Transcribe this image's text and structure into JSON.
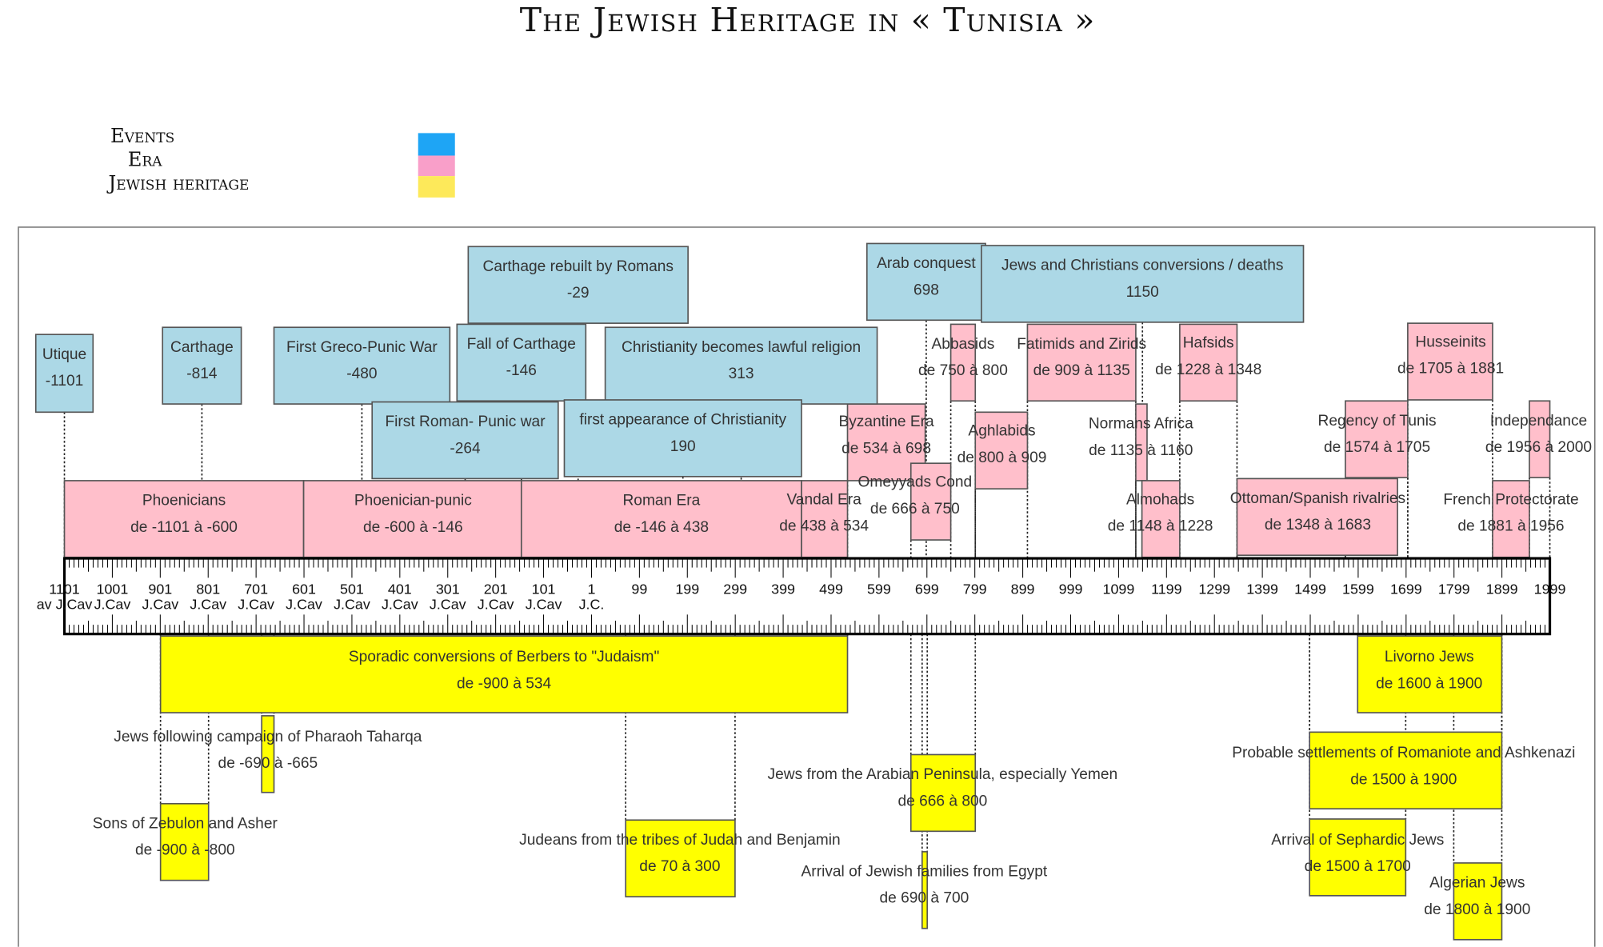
{
  "title": "The Jewish Heritage in « Tunisia »",
  "legend": [
    "Events",
    "Era",
    "Jewish heritage"
  ],
  "axis": {
    "years": [
      "1101",
      "1001",
      "901",
      "801",
      "701",
      "601",
      "501",
      "401",
      "301",
      "201",
      "101",
      "1",
      "99",
      "199",
      "299",
      "399",
      "499",
      "599",
      "699",
      "799",
      "899",
      "999",
      "1099",
      "1199",
      "1299",
      "1399",
      "1499",
      "1599",
      "1699",
      "1799",
      "1899",
      "1999"
    ],
    "era_labels": [
      "av J.Cav",
      "J.Cav",
      "J.Cav",
      "J.Cav",
      "J.Cav",
      "J.Cav",
      "J.Cav",
      "J.Cav",
      "J.Cav",
      "J.Cav",
      "J.Cav",
      "J.C."
    ]
  },
  "events": [
    {
      "name": "Utique",
      "dates": "-1101"
    },
    {
      "name": "Carthage",
      "dates": "-814"
    },
    {
      "name": "First Greco-Punic War",
      "dates": "-480"
    },
    {
      "name": "Fall of Carthage",
      "dates": "-146"
    },
    {
      "name": "Christianity becomes lawful religion",
      "dates": "313"
    },
    {
      "name": "Carthage rebuilt by Romans",
      "dates": "-29"
    },
    {
      "name": "First Roman- Punic war",
      "dates": "-264"
    },
    {
      "name": "first appearance of Christianity",
      "dates": "190"
    },
    {
      "name": "Arab conquest",
      "dates": "698"
    },
    {
      "name": "Jews and Christians conversions / deaths",
      "dates": "1150"
    }
  ],
  "eras": [
    {
      "name": "Phoenicians",
      "dates": "de -1101 à -600"
    },
    {
      "name": "Phoenician-punic",
      "dates": "de -600 à -146"
    },
    {
      "name": "Roman Era",
      "dates": "de -146 à 438"
    },
    {
      "name": "Vandal Era",
      "dates": "de 438 à 534"
    },
    {
      "name": "Byzantine Era",
      "dates": "de 534 à 698"
    },
    {
      "name": "Omeyyads Cond",
      "dates": "de 666 à 750"
    },
    {
      "name": "Abbasids",
      "dates": "de 750 à 800"
    },
    {
      "name": "Aghlabids",
      "dates": "de 800 à 909"
    },
    {
      "name": "Fatimids and Zirids",
      "dates": "de 909 à 1135"
    },
    {
      "name": "Normans Africa",
      "dates": "de 1135 à 1160"
    },
    {
      "name": "Almohads",
      "dates": "de 1148 à 1228"
    },
    {
      "name": "Hafsids",
      "dates": "de 1228 à 1348"
    },
    {
      "name": "Ottoman/Spanish rivalries",
      "dates": "de 1348 à 1683"
    },
    {
      "name": "Regency of Tunis",
      "dates": "de 1574 à 1705"
    },
    {
      "name": "Husseinits",
      "dates": "de 1705 à 1881"
    },
    {
      "name": "French Protectorate",
      "dates": "de 1881 à 1956"
    },
    {
      "name": "Independance",
      "dates": "de 1956 à 2000"
    }
  ],
  "heritage": [
    {
      "name": "Sporadic conversions of Berbers to \"Judaism\"",
      "dates": "de -900 à 534"
    },
    {
      "name": "Livorno Jews",
      "dates": "de 1600 à 1900"
    },
    {
      "name": "Jews following campaign of Pharaoh Taharqa",
      "dates": "de -690 à -665"
    },
    {
      "name": "Sons of Zebulon and Asher",
      "dates": "de -900 à -800"
    },
    {
      "name": "Judeans from the tribes of Judah and Benjamin",
      "dates": "de 70 à 300"
    },
    {
      "name": "Jews from the Arabian Peninsula, especially Yemen",
      "dates": "de 666 à 800"
    },
    {
      "name": "Arrival of Jewish families from Egypt",
      "dates": "de 690 à 700"
    },
    {
      "name": "Probable settlements of Romaniote and Ashkenazi",
      "dates": "de 1500 à 1900"
    },
    {
      "name": "Arrival of Sephardic Jews",
      "dates": "de 1500 à 1700"
    },
    {
      "name": "Algerian Jews",
      "dates": "de 1800 à 1900"
    }
  ]
}
